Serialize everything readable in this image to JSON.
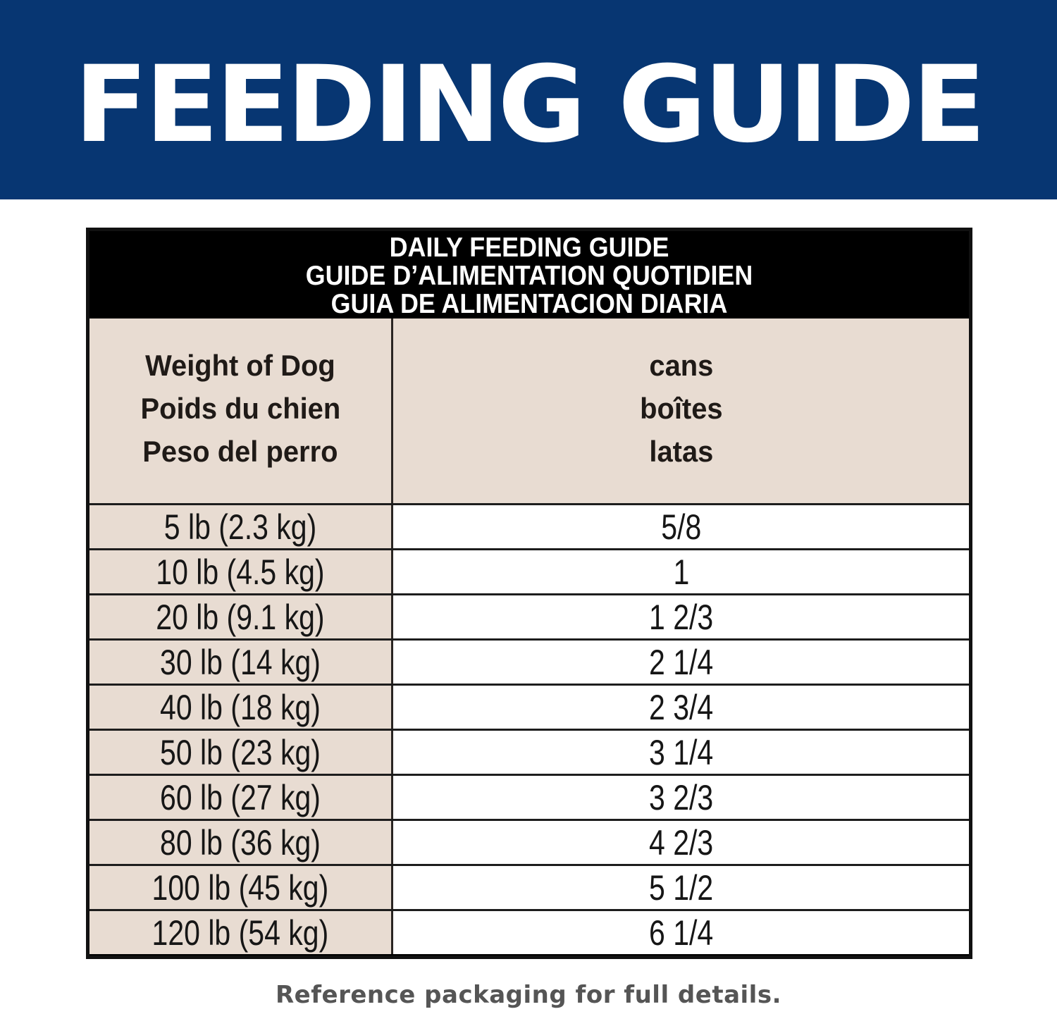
{
  "banner": {
    "title": "FEEDING GUIDE",
    "background_color": "#073672",
    "text_color": "#ffffff"
  },
  "table": {
    "caption": [
      "DAILY FEEDING GUIDE",
      "GUIDE D’ALIMENTATION QUOTIDIEN",
      "GUIA DE ALIMENTACION DIARIA"
    ],
    "columns": [
      {
        "header": [
          "Weight of Dog",
          "Poids du chien",
          "Peso del perro"
        ]
      },
      {
        "header": [
          "cans",
          "boîtes",
          "latas"
        ]
      }
    ],
    "rows": [
      {
        "weight": "5 lb (2.3 kg)",
        "cans": "5/8"
      },
      {
        "weight": "10 lb (4.5 kg)",
        "cans": "1"
      },
      {
        "weight": "20 lb (9.1 kg)",
        "cans": "1 2/3"
      },
      {
        "weight": "30 lb (14 kg)",
        "cans": "2 1/4"
      },
      {
        "weight": "40 lb (18 kg)",
        "cans": "2 3/4"
      },
      {
        "weight": "50 lb (23 kg)",
        "cans": "3 1/4"
      },
      {
        "weight": "60 lb (27 kg)",
        "cans": "3 2/3"
      },
      {
        "weight": "80 lb (36 kg)",
        "cans": "4 2/3"
      },
      {
        "weight": "100 lb (45 kg)",
        "cans": "5 1/2"
      },
      {
        "weight": "120 lb (54 kg)",
        "cans": "6 1/4"
      }
    ],
    "colors": {
      "caption_bg": "#000000",
      "header_bg": "#e8dcd2",
      "weight_col_bg": "#e8dcd2",
      "cans_col_bg": "#ffffff"
    }
  },
  "footnote": "Reference packaging for full details."
}
